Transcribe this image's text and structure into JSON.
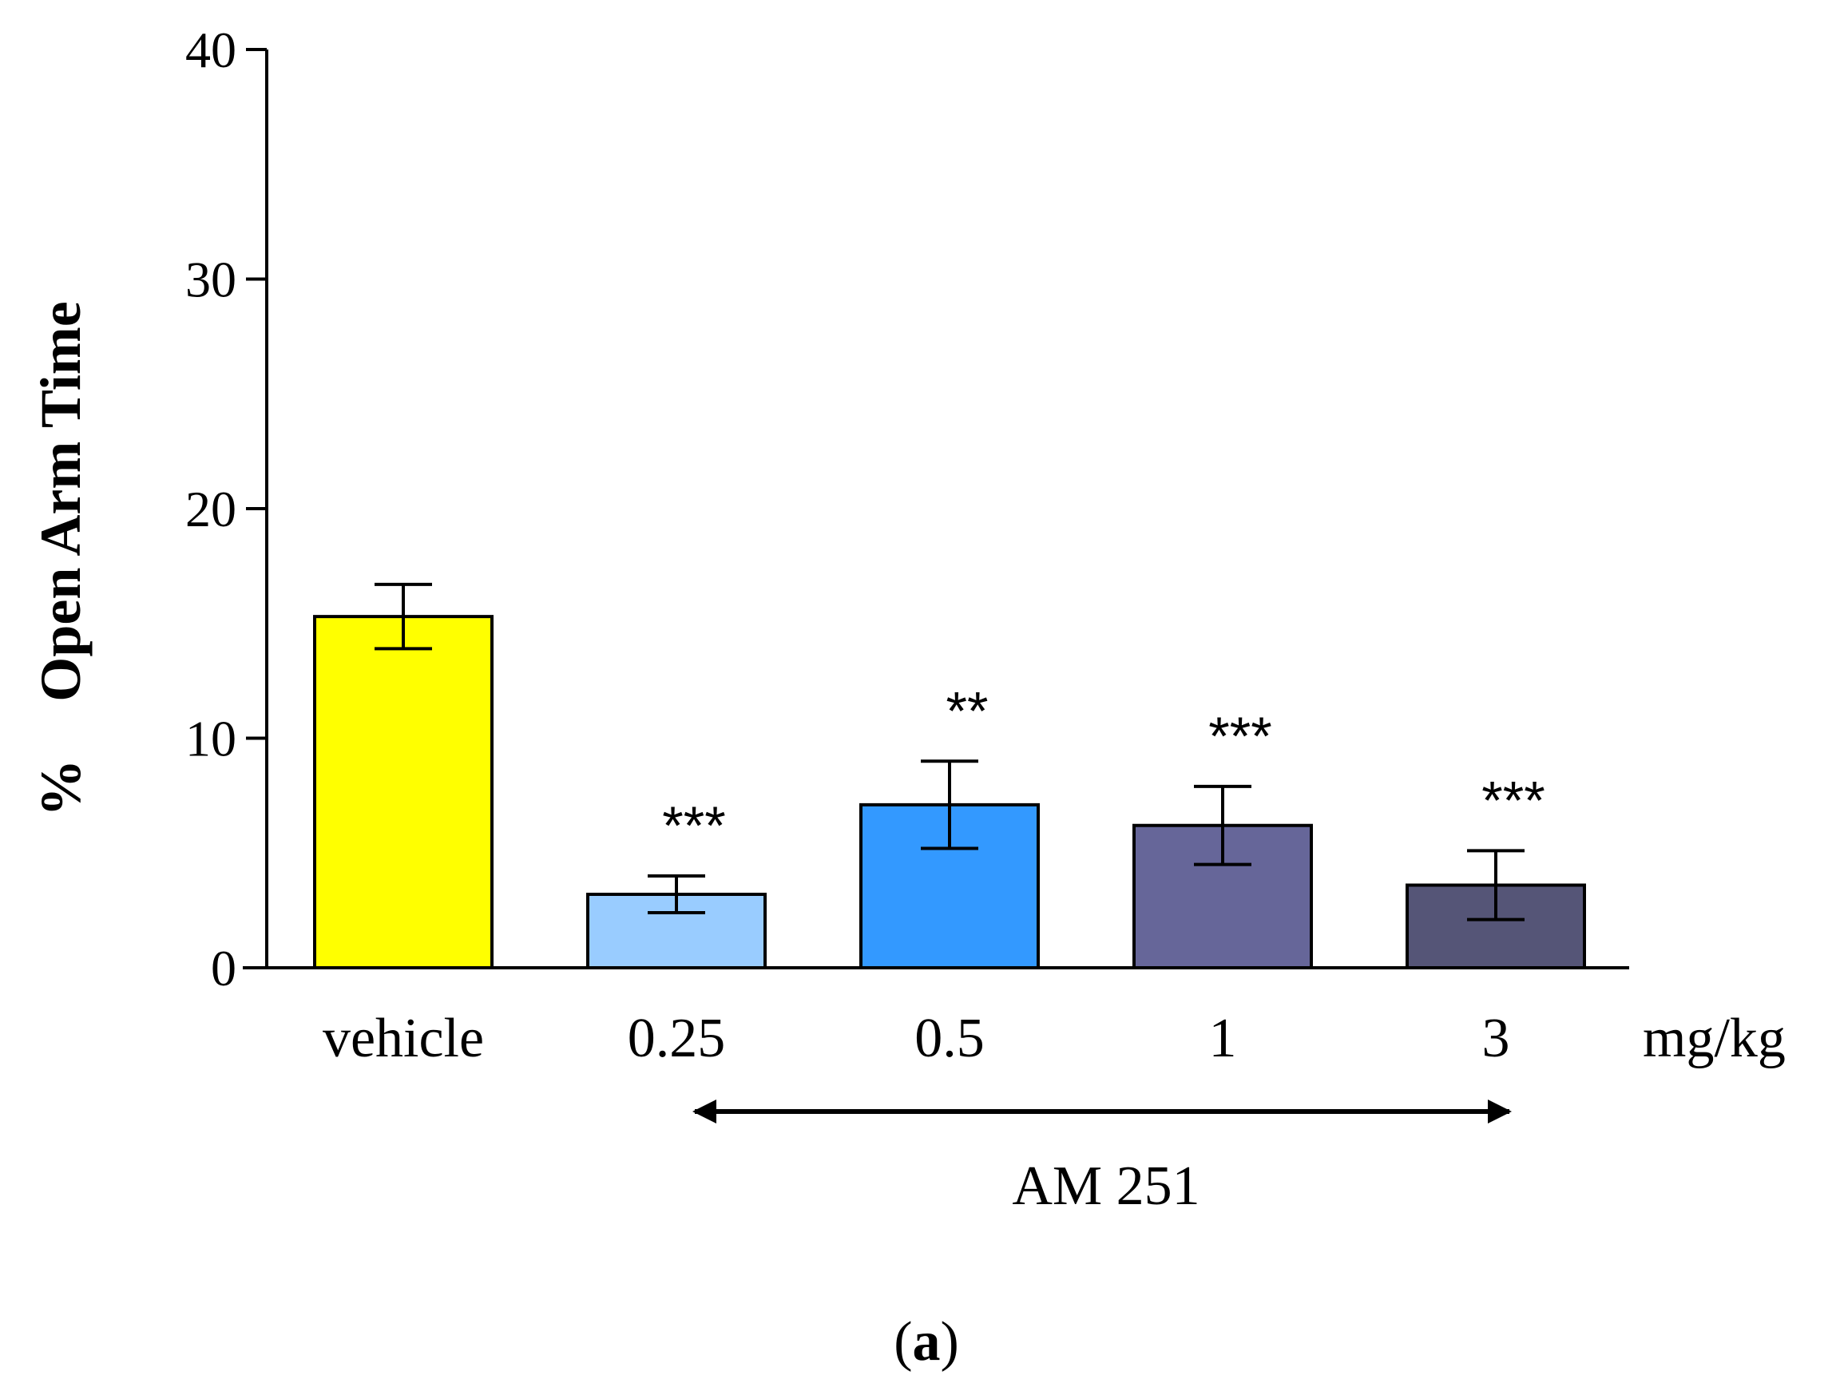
{
  "chart_data": {
    "type": "bar",
    "categories": [
      "vehicle",
      "0.25",
      "0.5",
      "1",
      "3"
    ],
    "values": [
      15.3,
      3.2,
      7.1,
      6.2,
      3.6
    ],
    "errors": [
      1.4,
      0.8,
      1.9,
      1.7,
      1.5
    ],
    "significance": [
      "",
      "***",
      "**",
      "***",
      "***"
    ],
    "colors": [
      "#ffff00",
      "#99ccff",
      "#3399ff",
      "#666699",
      "#555577"
    ],
    "ylim": [
      0,
      40
    ],
    "yticks": [
      0,
      10,
      20,
      30,
      40
    ],
    "ylabel": "%    Open Arm Time",
    "unit_label": "mg/kg",
    "group_label": "AM 251",
    "panel_label": "a",
    "panel_open": "(",
    "panel_close": ")"
  }
}
